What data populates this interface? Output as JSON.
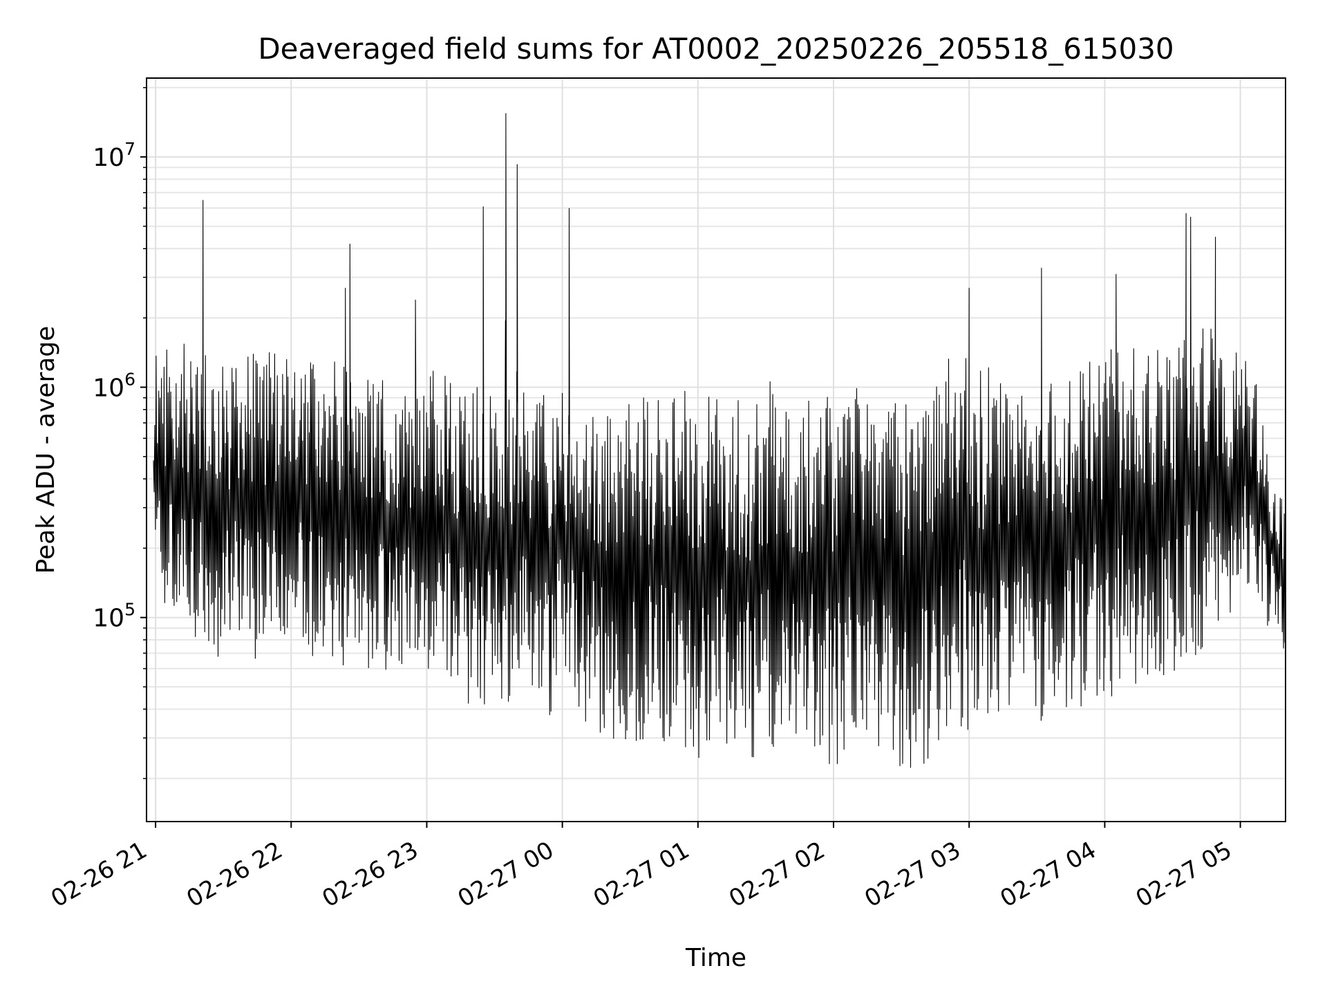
{
  "chart_data": {
    "type": "line",
    "title": "Deaveraged field sums for AT0002_20250226_205518_615030",
    "xlabel": "Time",
    "ylabel": "Peak ADU - average",
    "x_axis_type": "time",
    "xlim": [
      "2025-02-26 20:56",
      "2025-02-27 05:20"
    ],
    "y_scale": "log",
    "ylim": [
      13000,
      22000000
    ],
    "x_tick_labels": [
      "02-26 21",
      "02-26 22",
      "02-26 23",
      "02-27 00",
      "02-27 01",
      "02-27 02",
      "02-27 03",
      "02-27 04",
      "02-27 05"
    ],
    "x_ticks": [
      "2025-02-26 21:00",
      "2025-02-26 22:00",
      "2025-02-26 23:00",
      "2025-02-27 00:00",
      "2025-02-27 01:00",
      "2025-02-27 02:00",
      "2025-02-27 03:00",
      "2025-02-27 04:00",
      "2025-02-27 05:00"
    ],
    "y_ticks": [
      {
        "base": "10",
        "exp": "5",
        "value": 100000
      },
      {
        "base": "10",
        "exp": "6",
        "value": 1000000
      },
      {
        "base": "10",
        "exp": "7",
        "value": 10000000
      }
    ],
    "grid": true,
    "line_color": "#000000",
    "series": [
      {
        "x": [
          "2025-02-26 20:56",
          "2025-02-26 21:00",
          "2025-02-26 21:05",
          "2025-02-26 21:10",
          "2025-02-26 21:15",
          "2025-02-26 21:20",
          "2025-02-26 21:25",
          "2025-02-26 21:30",
          "2025-02-26 21:35",
          "2025-02-26 21:40",
          "2025-02-26 21:45",
          "2025-02-26 21:50",
          "2025-02-26 21:55",
          "2025-02-26 22:00",
          "2025-02-26 22:05",
          "2025-02-26 22:10",
          "2025-02-26 22:15",
          "2025-02-26 22:20",
          "2025-02-26 22:25",
          "2025-02-26 22:30",
          "2025-02-26 22:35",
          "2025-02-26 22:40",
          "2025-02-26 22:45",
          "2025-02-26 22:50",
          "2025-02-26 22:55",
          "2025-02-26 23:00",
          "2025-02-26 23:05",
          "2025-02-26 23:10",
          "2025-02-26 23:15",
          "2025-02-26 23:20",
          "2025-02-26 23:25",
          "2025-02-26 23:30",
          "2025-02-26 23:35",
          "2025-02-26 23:40",
          "2025-02-26 23:45",
          "2025-02-26 23:50",
          "2025-02-26 23:55",
          "2025-02-27 00:00",
          "2025-02-27 00:05",
          "2025-02-27 00:10",
          "2025-02-27 00:15",
          "2025-02-27 00:20",
          "2025-02-27 00:25",
          "2025-02-27 00:30",
          "2025-02-27 00:35",
          "2025-02-27 00:40",
          "2025-02-27 00:45",
          "2025-02-27 00:50",
          "2025-02-27 00:55",
          "2025-02-27 01:00",
          "2025-02-27 01:05",
          "2025-02-27 01:10",
          "2025-02-27 01:15",
          "2025-02-27 01:20",
          "2025-02-27 01:25",
          "2025-02-27 01:30",
          "2025-02-27 01:35",
          "2025-02-27 01:40",
          "2025-02-27 01:45",
          "2025-02-27 01:50",
          "2025-02-27 01:55",
          "2025-02-27 02:00",
          "2025-02-27 02:05",
          "2025-02-27 02:10",
          "2025-02-27 02:15",
          "2025-02-27 02:20",
          "2025-02-27 02:25",
          "2025-02-27 02:30",
          "2025-02-27 02:35",
          "2025-02-27 02:40",
          "2025-02-27 02:45",
          "2025-02-27 02:50",
          "2025-02-27 02:55",
          "2025-02-27 03:00",
          "2025-02-27 03:05",
          "2025-02-27 03:10",
          "2025-02-27 03:15",
          "2025-02-27 03:20",
          "2025-02-27 03:25",
          "2025-02-27 03:30",
          "2025-02-27 03:35",
          "2025-02-27 03:40",
          "2025-02-27 03:45",
          "2025-02-27 03:50",
          "2025-02-27 03:55",
          "2025-02-27 04:00",
          "2025-02-27 04:05",
          "2025-02-27 04:10",
          "2025-02-27 04:15",
          "2025-02-27 04:20",
          "2025-02-27 04:25",
          "2025-02-27 04:30",
          "2025-02-27 04:35",
          "2025-02-27 04:40",
          "2025-02-27 04:45",
          "2025-02-27 04:50",
          "2025-02-27 04:55",
          "2025-02-27 05:00",
          "2025-02-27 05:05",
          "2025-02-27 05:10",
          "2025-02-27 05:15",
          "2025-02-27 05:20"
        ],
        "low": [
          150000,
          120000,
          100000,
          90000,
          80000,
          80000,
          70000,
          60000,
          80000,
          70000,
          65000,
          60000,
          75000,
          70000,
          80000,
          65000,
          60000,
          70000,
          55000,
          50000,
          60000,
          55000,
          60000,
          55000,
          65000,
          60000,
          50000,
          45000,
          40000,
          35000,
          40000,
          45000,
          40000,
          50000,
          45000,
          40000,
          35000,
          50000,
          40000,
          35000,
          30000,
          25000,
          22000,
          25000,
          28000,
          30000,
          28000,
          25000,
          25000,
          20000,
          25000,
          28000,
          25000,
          22000,
          22000,
          25000,
          25000,
          28000,
          25000,
          25000,
          22000,
          22000,
          25000,
          25000,
          28000,
          25000,
          25000,
          22000,
          18000,
          22000,
          25000,
          30000,
          35000,
          30000,
          30000,
          35000,
          35000,
          35000,
          40000,
          35000,
          35000,
          35000,
          40000,
          40000,
          45000,
          40000,
          45000,
          50000,
          50000,
          45000,
          50000,
          55000,
          60000,
          65000,
          70000,
          80000,
          100000,
          150000,
          120000,
          100000,
          80000,
          65000
        ],
        "high": [
          1300000,
          1400000,
          1500000,
          1600000,
          1500000,
          1500000,
          1400000,
          1300000,
          1300000,
          1400000,
          1500000,
          1500000,
          1400000,
          1500000,
          1400000,
          1300000,
          1300000,
          1400000,
          1200000,
          1100000,
          1200000,
          1200000,
          1100000,
          1000000,
          1200000,
          1300000,
          1200000,
          1100000,
          1000000,
          1000000,
          1100000,
          1000000,
          1000000,
          1000000,
          1000000,
          950000,
          950000,
          1100000,
          1000000,
          1000000,
          950000,
          1000000,
          950000,
          950000,
          1000000,
          1000000,
          950000,
          950000,
          1000000,
          1000000,
          950000,
          900000,
          900000,
          1000000,
          950000,
          1100000,
          1100000,
          1000000,
          1000000,
          1000000,
          1000000,
          1000000,
          1100000,
          1100000,
          1000000,
          1000000,
          950000,
          900000,
          900000,
          950000,
          1100000,
          1300000,
          1500000,
          1400000,
          1300000,
          1200000,
          1100000,
          1100000,
          1000000,
          1000000,
          1100000,
          1100000,
          1200000,
          1300000,
          1400000,
          1500000,
          1500000,
          1600000,
          1600000,
          1500000,
          1500000,
          1500000,
          1600000,
          1800000,
          2000000,
          1600000,
          1500000,
          1400000,
          1300000,
          800000,
          450000,
          300000
        ],
        "spikes": [
          {
            "x": "2025-02-26 21:21",
            "y": 6500000
          },
          {
            "x": "2025-02-26 22:26",
            "y": 4200000
          },
          {
            "x": "2025-02-26 22:24",
            "y": 2700000
          },
          {
            "x": "2025-02-26 22:55",
            "y": 2400000
          },
          {
            "x": "2025-02-26 23:25",
            "y": 6100000
          },
          {
            "x": "2025-02-26 23:35",
            "y": 15500000
          },
          {
            "x": "2025-02-26 23:40",
            "y": 9300000
          },
          {
            "x": "2025-02-27 00:03",
            "y": 6000000
          },
          {
            "x": "2025-02-27 03:00",
            "y": 2700000
          },
          {
            "x": "2025-02-27 03:32",
            "y": 3300000
          },
          {
            "x": "2025-02-27 04:05",
            "y": 3100000
          },
          {
            "x": "2025-02-27 04:36",
            "y": 5700000
          },
          {
            "x": "2025-02-27 04:38",
            "y": 5500000
          },
          {
            "x": "2025-02-27 04:49",
            "y": 4500000
          }
        ]
      }
    ]
  }
}
